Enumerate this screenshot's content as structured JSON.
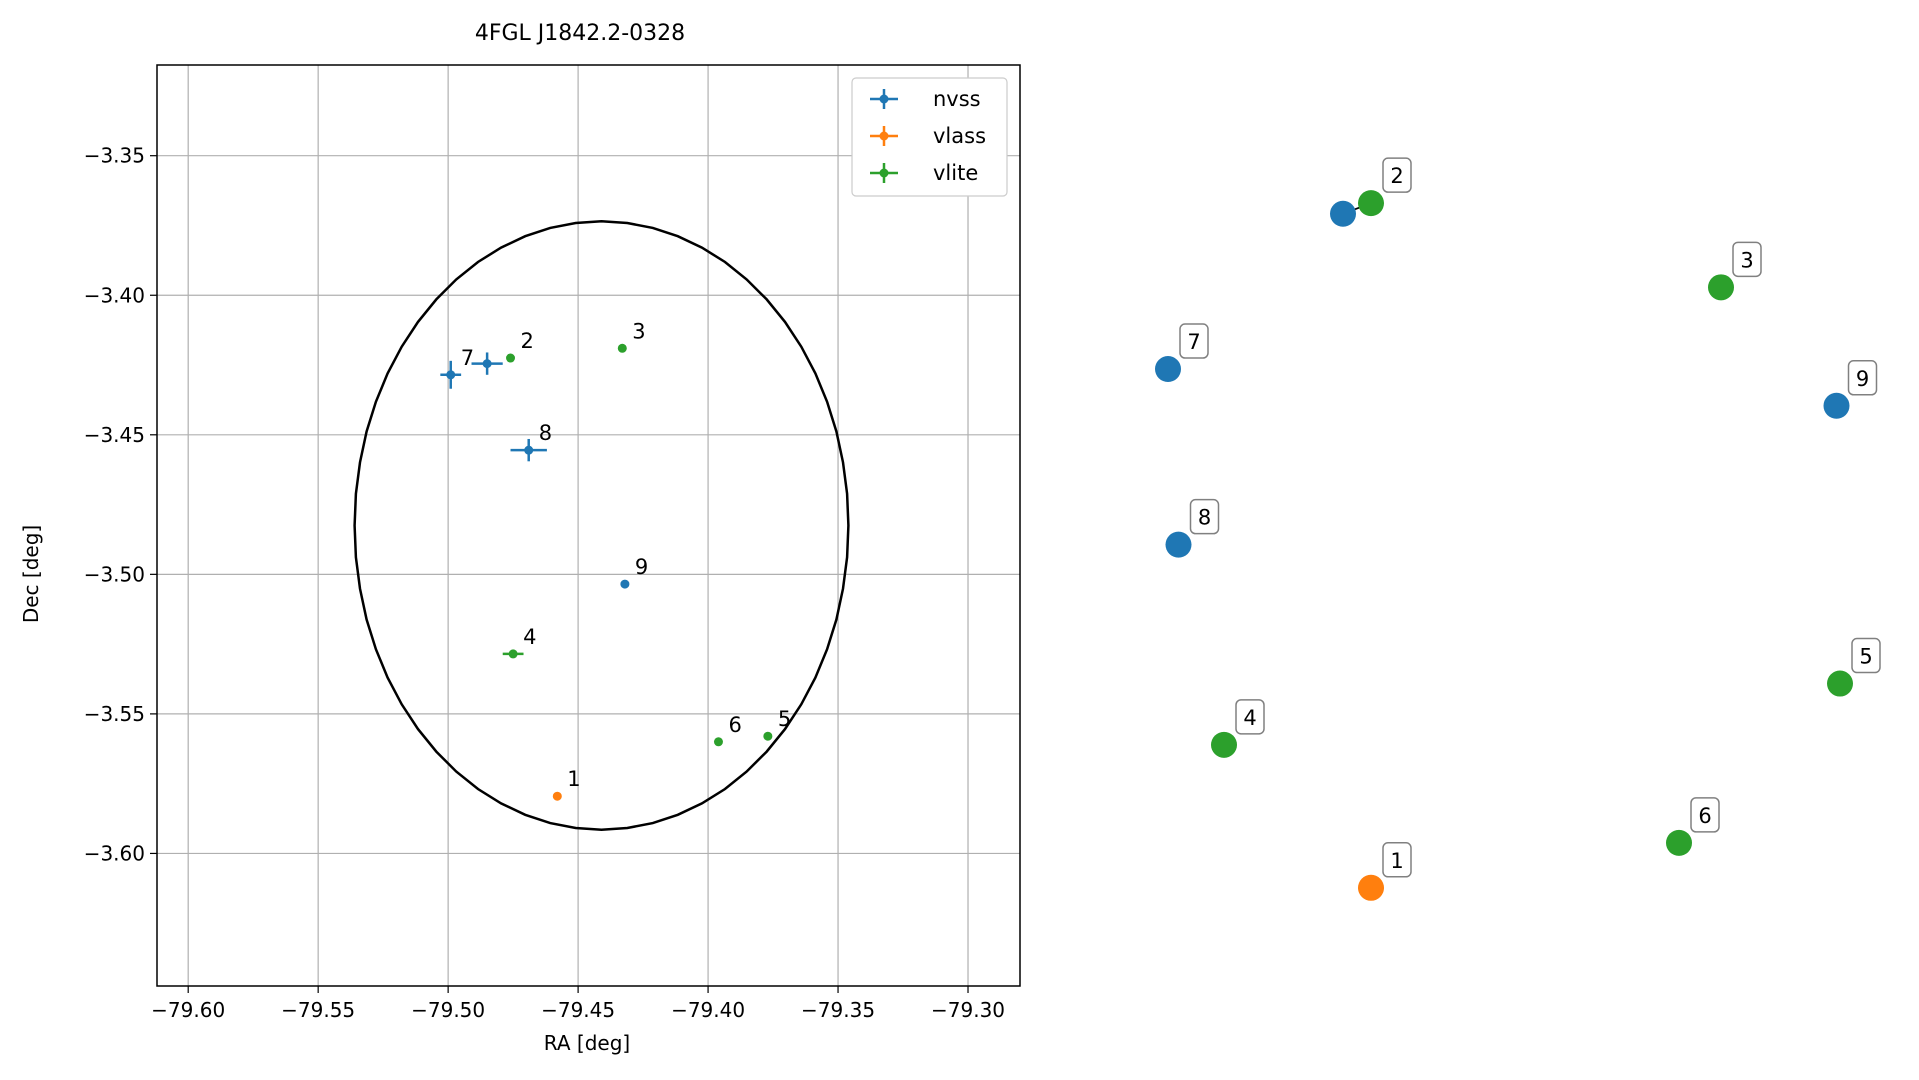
{
  "chart_data": [
    {
      "type": "scatter",
      "title": "4FGL J1842.2-0328",
      "xlabel": "RA [deg]",
      "ylabel": "Dec [deg]",
      "xlim": [
        -79.612,
        -79.28
      ],
      "ylim": [
        -3.6475,
        -3.3175
      ],
      "x_ticks": [
        -79.6,
        -79.55,
        -79.5,
        -79.45,
        -79.4,
        -79.35,
        -79.3
      ],
      "x_tick_labels": [
        "−79.60",
        "−79.55",
        "−79.50",
        "−79.45",
        "−79.40",
        "−79.35",
        "−79.30"
      ],
      "y_ticks": [
        -3.35,
        -3.4,
        -3.45,
        -3.5,
        -3.55,
        -3.6
      ],
      "y_tick_labels": [
        "−3.35",
        "−3.40",
        "−3.45",
        "−3.50",
        "−3.55",
        "−3.60"
      ],
      "grid": true,
      "legend_position": "top-right",
      "ellipse": {
        "center_ra": -79.441,
        "center_dec": -3.4825,
        "semi_ra": 0.095,
        "semi_dec": 0.109
      },
      "series": [
        {
          "name": "nvss",
          "color": "#1f77b4",
          "points": [
            {
              "label": "7",
              "ra": -79.499,
              "dec": -3.4285,
              "err_ra": 0.004,
              "err_dec": 0.005
            },
            {
              "label": "",
              "ra": -79.485,
              "dec": -3.4245,
              "err_ra": 0.006,
              "err_dec": 0.004
            },
            {
              "label": "8",
              "ra": -79.469,
              "dec": -3.4555,
              "err_ra": 0.007,
              "err_dec": 0.004
            },
            {
              "label": "9",
              "ra": -79.432,
              "dec": -3.5035,
              "err_ra": 0,
              "err_dec": 0
            }
          ]
        },
        {
          "name": "vlass",
          "color": "#ff7f0e",
          "points": [
            {
              "label": "1",
              "ra": -79.458,
              "dec": -3.5795,
              "err_ra": 0,
              "err_dec": 0
            }
          ]
        },
        {
          "name": "vlite",
          "color": "#2ca02c",
          "points": [
            {
              "label": "2",
              "ra": -79.476,
              "dec": -3.4225,
              "err_ra": 0,
              "err_dec": 0
            },
            {
              "label": "3",
              "ra": -79.433,
              "dec": -3.419,
              "err_ra": 0,
              "err_dec": 0
            },
            {
              "label": "4",
              "ra": -79.475,
              "dec": -3.5285,
              "err_ra": 0.004,
              "err_dec": 0.0015
            },
            {
              "label": "5",
              "ra": -79.377,
              "dec": -3.558,
              "err_ra": 0,
              "err_dec": 0
            },
            {
              "label": "6",
              "ra": -79.396,
              "dec": -3.56,
              "err_ra": 0,
              "err_dec": 0
            }
          ]
        }
      ]
    },
    {
      "type": "scatter",
      "xlim": [
        0,
        1
      ],
      "ylim": [
        0,
        1
      ],
      "axes": false,
      "edges": [
        [
          "2-blue",
          "2"
        ]
      ],
      "nodes": [
        {
          "id": "2-blue",
          "label": "",
          "series": "nvss",
          "x": 0.29,
          "y": 0.895
        },
        {
          "id": "2",
          "label": "2",
          "series": "vlite",
          "x": 0.33,
          "y": 0.908
        },
        {
          "id": "3",
          "label": "3",
          "series": "vlite",
          "x": 0.83,
          "y": 0.805
        },
        {
          "id": "7",
          "label": "7",
          "series": "nvss",
          "x": 0.04,
          "y": 0.705
        },
        {
          "id": "9",
          "label": "9",
          "series": "nvss",
          "x": 0.995,
          "y": 0.66
        },
        {
          "id": "8",
          "label": "8",
          "series": "nvss",
          "x": 0.055,
          "y": 0.49
        },
        {
          "id": "5",
          "label": "5",
          "series": "vlite",
          "x": 1.0,
          "y": 0.32
        },
        {
          "id": "4",
          "label": "4",
          "series": "vlite",
          "x": 0.12,
          "y": 0.245
        },
        {
          "id": "6",
          "label": "6",
          "series": "vlite",
          "x": 0.77,
          "y": 0.125
        },
        {
          "id": "1",
          "label": "1",
          "series": "vlass",
          "x": 0.33,
          "y": 0.07
        }
      ]
    }
  ]
}
